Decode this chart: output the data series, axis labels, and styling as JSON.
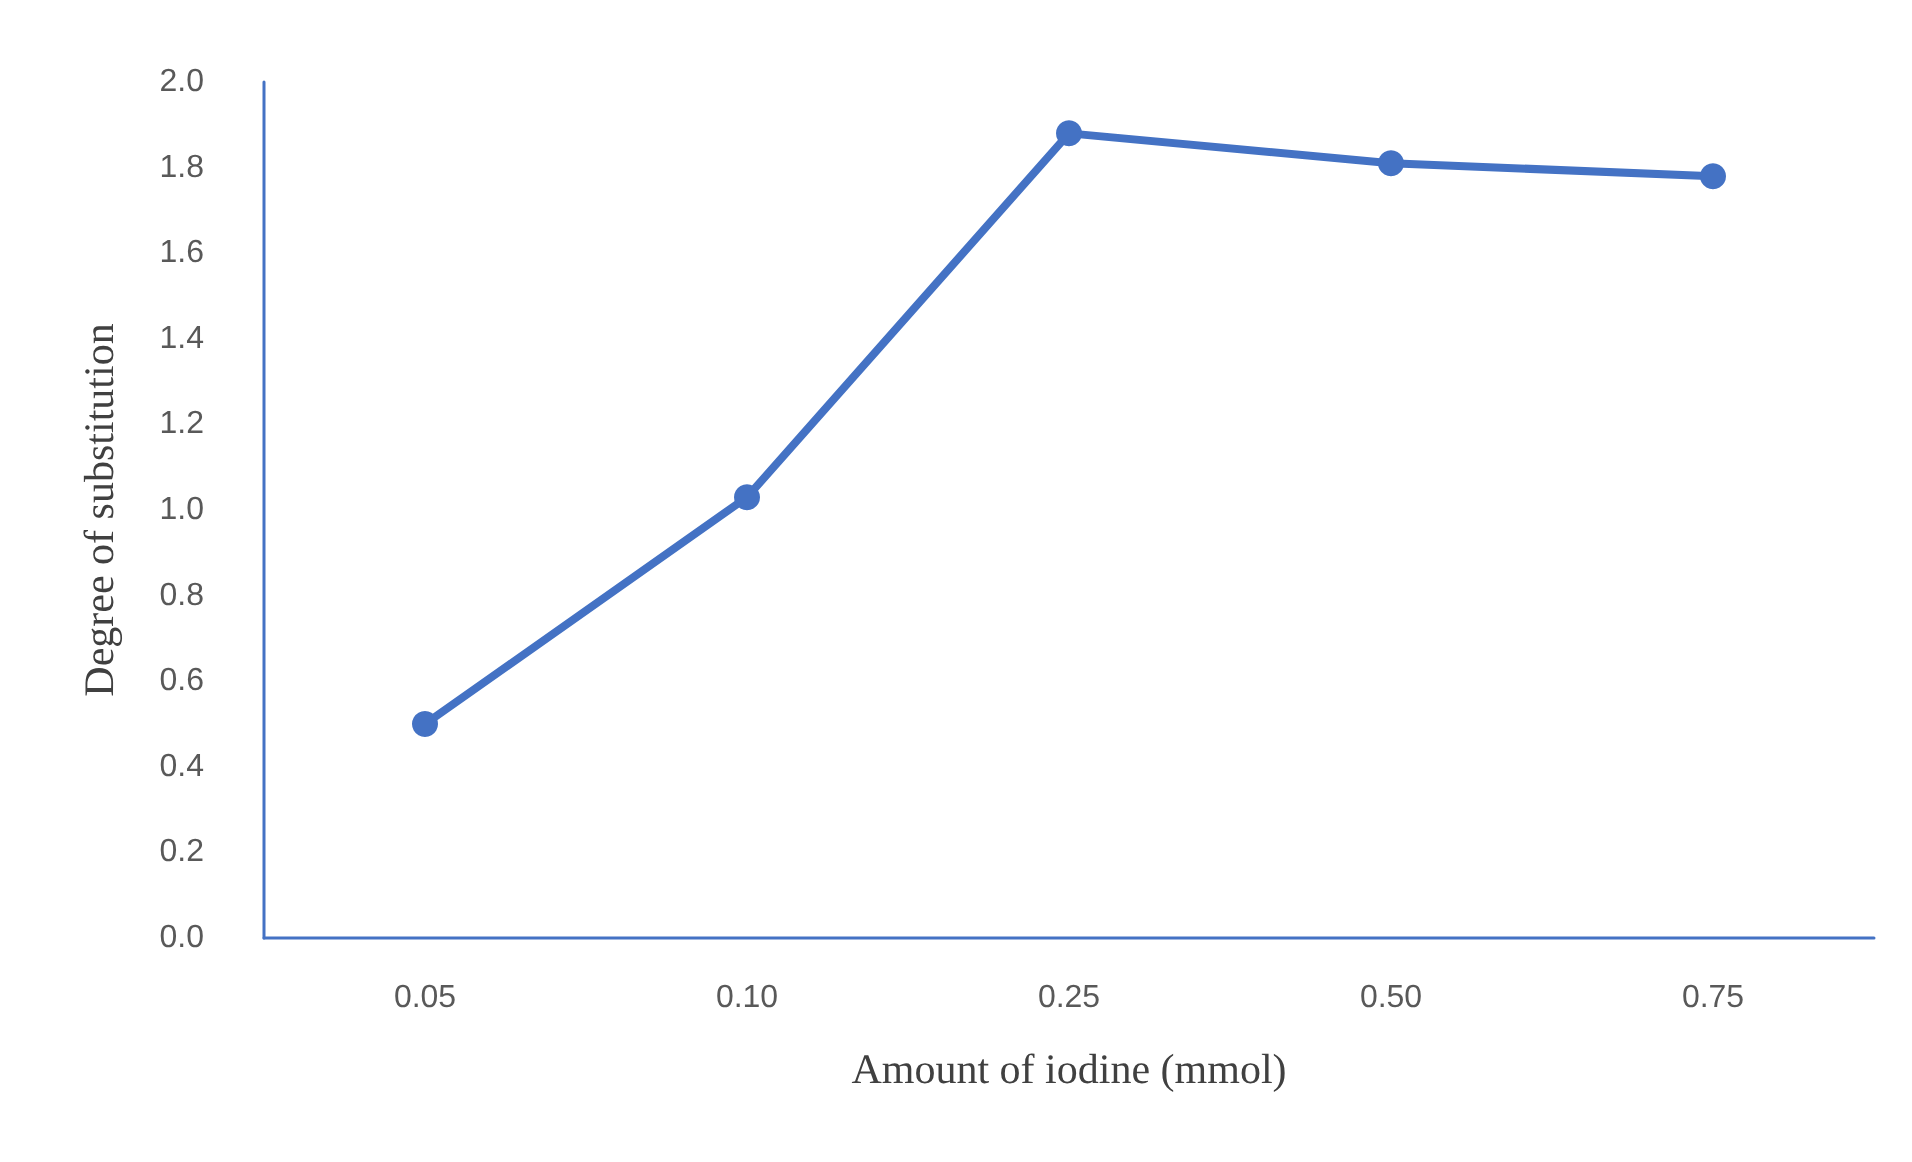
{
  "chart_data": {
    "type": "line",
    "xlabel": "Amount of iodine (mmol)",
    "ylabel": "Degree of substitution",
    "categories": [
      "0.05",
      "0.10",
      "0.25",
      "0.50",
      "0.75"
    ],
    "series": [
      {
        "color": "#4472c4",
        "values": [
          0.5,
          1.03,
          1.88,
          1.81,
          1.78
        ]
      }
    ],
    "ylim": [
      0,
      2
    ],
    "yticks": [
      {
        "value": 0,
        "label": "0.0"
      },
      {
        "value": 0.2,
        "label": "0.2"
      },
      {
        "value": 0.4,
        "label": "0.4"
      },
      {
        "value": 0.6,
        "label": "0.6"
      },
      {
        "value": 0.8,
        "label": "0.8"
      },
      {
        "value": 1,
        "label": "1.0"
      },
      {
        "value": 1.2,
        "label": "1.2"
      },
      {
        "value": 1.4,
        "label": "1.4"
      },
      {
        "value": 1.6,
        "label": "1.6"
      },
      {
        "value": 1.8,
        "label": "1.8"
      },
      {
        "value": 2,
        "label": "2.0"
      }
    ],
    "marker": "circle",
    "grid": false
  }
}
